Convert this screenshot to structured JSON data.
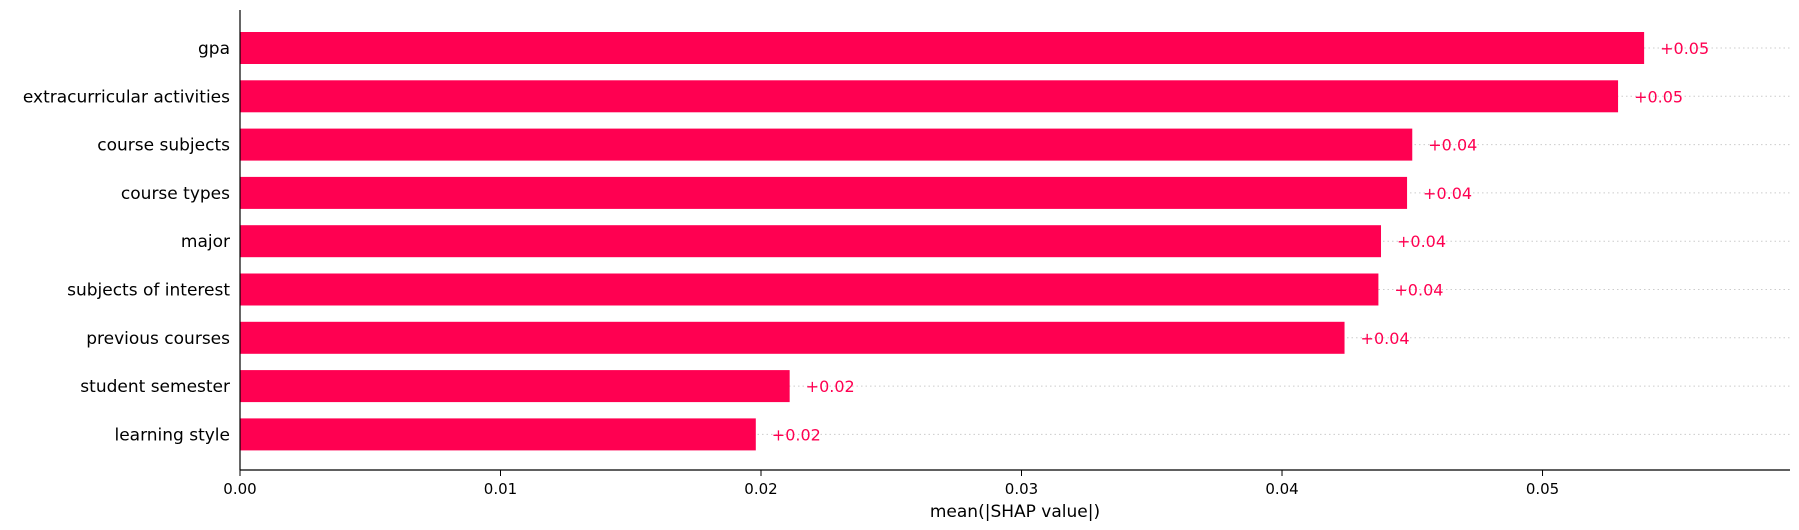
{
  "chart_data": {
    "type": "bar",
    "orientation": "horizontal",
    "categories": [
      "gpa",
      "extracurricular activities",
      "course subjects",
      "course types",
      "major",
      "subjects of interest",
      "previous courses",
      "student semester",
      "learning style"
    ],
    "values": [
      0.0539,
      0.0529,
      0.045,
      0.0448,
      0.0438,
      0.0437,
      0.0424,
      0.0211,
      0.0198
    ],
    "data_labels": [
      "+0.05",
      "+0.05",
      "+0.04",
      "+0.04",
      "+0.04",
      "+0.04",
      "+0.04",
      "+0.02",
      "+0.02"
    ],
    "xlabel": "mean(|SHAP value|)",
    "ylabel": "",
    "xlim": [
      0.0,
      0.0595
    ],
    "xticks": [
      0.0,
      0.01,
      0.02,
      0.03,
      0.04,
      0.05
    ],
    "xtick_labels": [
      "0.00",
      "0.01",
      "0.02",
      "0.03",
      "0.04",
      "0.05"
    ],
    "grid": "dotted row guides",
    "legend": "none",
    "bar_color": "#ff0051",
    "label_color": "#ff0051"
  }
}
